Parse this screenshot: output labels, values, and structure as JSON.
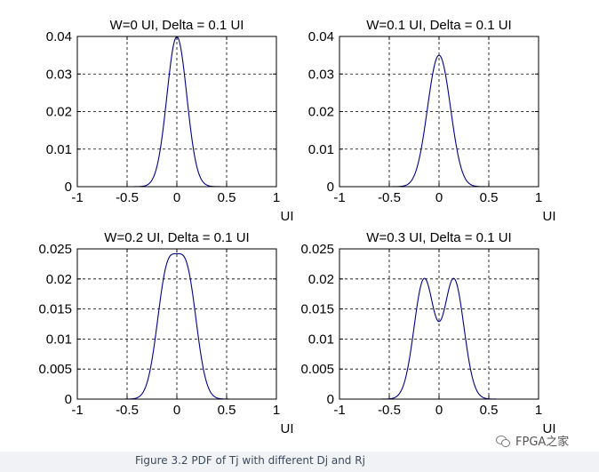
{
  "chart_data": [
    {
      "type": "line",
      "title": "W=0 UI, Delta = 0.1 UI",
      "xlabel": "UI",
      "ylabel": "",
      "xlim": [
        -1,
        1
      ],
      "ylim": [
        0,
        0.04
      ],
      "xticks": [
        "-1",
        "-0.5",
        "0",
        "0.5",
        "1"
      ],
      "yticks": [
        "0",
        "0.01",
        "0.02",
        "0.03",
        "0.04"
      ],
      "grid": true,
      "series": [
        {
          "color": "#00008b",
          "x_range": [
            -0.95,
            0.85
          ],
          "peaks": [
            0
          ],
          "sigma": 0.1,
          "peak_value": 0.0399
        }
      ]
    },
    {
      "type": "line",
      "title": "W=0.1 UI, Delta = 0.1 UI",
      "xlabel": "UI",
      "ylabel": "",
      "xlim": [
        -1,
        1
      ],
      "ylim": [
        0,
        0.04
      ],
      "xticks": [
        "-1",
        "-0.5",
        "0",
        "0.5",
        "1"
      ],
      "yticks": [
        "0",
        "0.01",
        "0.02",
        "0.03",
        "0.04"
      ],
      "grid": true,
      "series": [
        {
          "color": "#00008b",
          "x_range": [
            -0.9,
            0.9
          ],
          "peaks": [
            -0.05,
            0.05
          ],
          "sigma": 0.1,
          "peak_value": 0.035
        }
      ]
    },
    {
      "type": "line",
      "title": "W=0.2 UI, Delta = 0.1 UI",
      "xlabel": "UI",
      "ylabel": "",
      "xlim": [
        -1,
        1
      ],
      "ylim": [
        0,
        0.025
      ],
      "xticks": [
        "-1",
        "-0.5",
        "0",
        "0.5",
        "1"
      ],
      "yticks": [
        "0",
        "0.005",
        "0.01",
        "0.015",
        "0.02",
        "0.025"
      ],
      "grid": true,
      "series": [
        {
          "color": "#00008b",
          "x_range": [
            -0.95,
            0.95
          ],
          "peaks": [
            -0.1,
            0.1
          ],
          "sigma": 0.1,
          "peak_value": 0.0242
        }
      ]
    },
    {
      "type": "line",
      "title": "W=0.3 UI, Delta = 0.1 UI",
      "xlabel": "UI",
      "ylabel": "",
      "xlim": [
        -1,
        1
      ],
      "ylim": [
        0,
        0.025
      ],
      "xticks": [
        "-1",
        "-0.5",
        "0",
        "0.5",
        "1"
      ],
      "yticks": [
        "0",
        "0.005",
        "0.01",
        "0.015",
        "0.02",
        "0.025"
      ],
      "grid": true,
      "series": [
        {
          "color": "#00008b",
          "x_range": [
            -0.95,
            0.95
          ],
          "peaks": [
            -0.15,
            0.15
          ],
          "sigma": 0.1,
          "peak_value": 0.0201
        }
      ]
    }
  ],
  "caption": "Figure 3.2 PDF of Tj with different Dj and Rj",
  "watermark": {
    "icon": "wechat-icon",
    "text": "FPGA之家"
  }
}
